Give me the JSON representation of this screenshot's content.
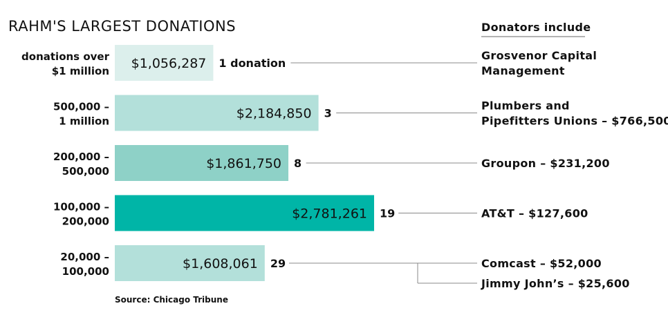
{
  "chart_data": {
    "type": "bar",
    "orientation": "horizontal",
    "title": "RAHM'S LARGEST DONATIONS",
    "source": "Source: Chicago Tribune",
    "donators_header": "Donators include",
    "max_value": 2781261,
    "rows": [
      {
        "category_lines": [
          "donations over",
          "$1 million"
        ],
        "value": 1056287,
        "value_label": "$1,056,287",
        "count_label": "1 donation",
        "color": "#dcefec",
        "donators": [
          {
            "lines": [
              "Grosvenor Capital",
              "Management"
            ]
          }
        ]
      },
      {
        "category_lines": [
          "500,000 –",
          "1 million"
        ],
        "value": 2184850,
        "value_label": "$2,184,850",
        "count_label": "3",
        "color": "#b3e0da",
        "donators": [
          {
            "lines": [
              "Plumbers and",
              "Pipefitters Unions – $766,500"
            ]
          }
        ]
      },
      {
        "category_lines": [
          "200,000 –",
          "500,000"
        ],
        "value": 1861750,
        "value_label": "$1,861,750",
        "count_label": "8",
        "color": "#8ed1c7",
        "donators": [
          {
            "lines": [
              "Groupon – $231,200"
            ]
          }
        ]
      },
      {
        "category_lines": [
          "100,000 –",
          "200,000"
        ],
        "value": 2781261,
        "value_label": "$2,781,261",
        "count_label": "19",
        "color": "#00b5a7",
        "donators": [
          {
            "lines": [
              "AT&T – $127,600"
            ]
          }
        ]
      },
      {
        "category_lines": [
          "20,000 –",
          "100,000"
        ],
        "value": 1608061,
        "value_label": "$1,608,061",
        "count_label": "29",
        "color": "#b3e0da",
        "donators": [
          {
            "lines": [
              "Comcast – $52,000"
            ]
          },
          {
            "lines": [
              "Jimmy John’s – $25,600"
            ]
          }
        ]
      }
    ]
  }
}
